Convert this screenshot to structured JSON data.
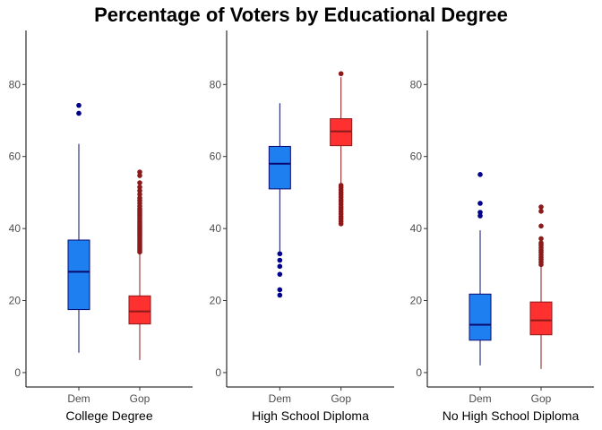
{
  "chart_data": {
    "type": "boxplot",
    "title": "Percentage of Voters by Educational Degree",
    "ylim": [
      -4,
      95
    ],
    "y_ticks": [
      0,
      20,
      40,
      60,
      80
    ],
    "grid": false,
    "colors": {
      "Dem": {
        "fill": "#1E7FF0",
        "line": "#0A0A6E",
        "outlier": "#00008B"
      },
      "Gop": {
        "fill": "#FF3030",
        "line": "#8B1A1A",
        "outlier": "#8B1A1A"
      }
    },
    "categories": [
      "Dem",
      "Gop"
    ],
    "panels": [
      {
        "label": "College Degree",
        "boxes": [
          {
            "group": "Dem",
            "min": 5.5,
            "q1": 17.5,
            "median": 28,
            "q3": 36.8,
            "max": 63.5,
            "outliers": [
              72,
              74.2
            ]
          },
          {
            "group": "Gop",
            "min": 3.5,
            "q1": 13.5,
            "median": 17,
            "q3": 21.3,
            "max": 33,
            "outliers": [
              33.5,
              34,
              34.5,
              35,
              35.5,
              36,
              36.5,
              37,
              37.5,
              38,
              38.5,
              39,
              39.5,
              40,
              40.5,
              41,
              41.5,
              42,
              42.5,
              43,
              43.5,
              44,
              44.5,
              45,
              45.5,
              46.2,
              47,
              47.8,
              48.5,
              49.5,
              50.5,
              51.5,
              52.7,
              54.7,
              55.7
            ]
          }
        ]
      },
      {
        "label": "High School Diploma",
        "boxes": [
          {
            "group": "Dem",
            "min": 33.5,
            "q1": 51,
            "median": 58,
            "q3": 62.8,
            "max": 74.8,
            "outliers": [
              21.5,
              23,
              27.3,
              29.5,
              31.2,
              33
            ]
          },
          {
            "group": "Gop",
            "min": 52,
            "q1": 63,
            "median": 67,
            "q3": 70.5,
            "max": 82,
            "outliers": [
              41.3,
              42,
              42.7,
              43.3,
              44,
              44.7,
              45.4,
              46,
              46.7,
              47.4,
              48,
              48.7,
              49.4,
              50,
              50.7,
              51.4,
              52,
              83
            ]
          }
        ]
      },
      {
        "label": "No High School Diploma",
        "boxes": [
          {
            "group": "Dem",
            "min": 2,
            "q1": 9,
            "median": 13.3,
            "q3": 21.8,
            "max": 39.5,
            "outliers": [
              43.5,
              44.5,
              47,
              55
            ]
          },
          {
            "group": "Gop",
            "min": 1,
            "q1": 10.5,
            "median": 14.5,
            "q3": 19.6,
            "max": 29.5,
            "outliers": [
              30,
              30.7,
              31.4,
              32,
              32.7,
              33.4,
              34,
              34.7,
              35.4,
              36,
              37.2,
              40.7,
              44.8,
              46
            ]
          }
        ]
      }
    ]
  }
}
